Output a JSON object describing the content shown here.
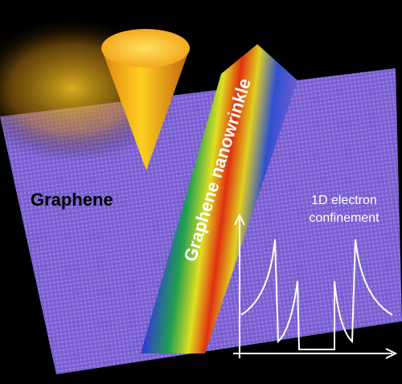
{
  "labels": {
    "surface": "Graphene",
    "wrinkle": "Graphene nanowrinkle",
    "confinement": [
      "1D electron",
      "confinement"
    ]
  }
}
